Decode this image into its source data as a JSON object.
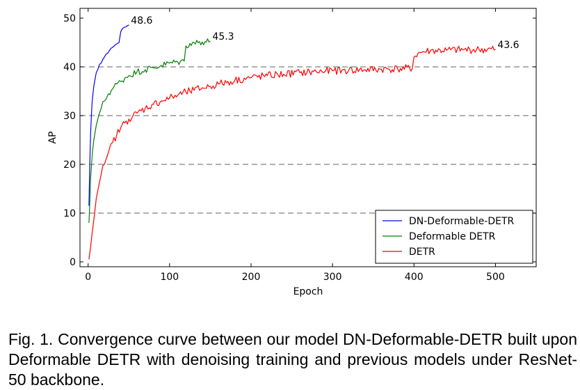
{
  "chart_data": {
    "type": "line",
    "title": "",
    "xlabel": "Epoch",
    "ylabel": "AP",
    "xlim": [
      -10,
      550
    ],
    "ylim": [
      -1,
      52
    ],
    "xticks": [
      0,
      100,
      200,
      300,
      400,
      500
    ],
    "yticks": [
      0,
      10,
      20,
      30,
      40,
      50
    ],
    "grid": "dashed horizontal at y=10, 20, 30, 40",
    "legend_position": "bottom-right",
    "series": [
      {
        "name": "DN-Deformable-DETR",
        "color": "#0000ff",
        "end_label": "48.6",
        "x": [
          1,
          2,
          3,
          4,
          5,
          6,
          7,
          8,
          10,
          12,
          14,
          16,
          18,
          20,
          22,
          24,
          26,
          28,
          30,
          32,
          34,
          36,
          38,
          40,
          42,
          44,
          46,
          48,
          50
        ],
        "y": [
          11.5,
          20.0,
          26.0,
          30.0,
          33.0,
          34.5,
          36.0,
          37.0,
          38.8,
          39.5,
          40.5,
          40.8,
          41.5,
          42.0,
          42.6,
          42.8,
          43.3,
          43.8,
          44.0,
          44.3,
          44.6,
          44.8,
          45.0,
          47.2,
          47.8,
          48.1,
          48.2,
          48.4,
          48.6
        ]
      },
      {
        "name": "Deformable DETR",
        "color": "#008000",
        "end_label": "45.3",
        "x": [
          1,
          2,
          3,
          5,
          7,
          10,
          13,
          16,
          20,
          25,
          30,
          35,
          40,
          45,
          50,
          60,
          70,
          80,
          90,
          100,
          110,
          118,
          120,
          125,
          130,
          140,
          150
        ],
        "y": [
          8.0,
          12.0,
          17.0,
          22.0,
          25.0,
          28.0,
          30.0,
          31.5,
          33.0,
          34.5,
          35.5,
          36.5,
          37.0,
          37.7,
          38.2,
          39.0,
          39.4,
          39.8,
          40.3,
          40.8,
          41.0,
          41.2,
          44.3,
          44.8,
          45.0,
          45.1,
          45.3
        ]
      },
      {
        "name": "DETR",
        "color": "#ff0000",
        "end_label": "43.6",
        "x": [
          1,
          3,
          5,
          8,
          10,
          13,
          16,
          20,
          25,
          30,
          35,
          40,
          45,
          50,
          60,
          70,
          80,
          90,
          100,
          110,
          120,
          130,
          140,
          150,
          160,
          180,
          200,
          220,
          240,
          260,
          280,
          300,
          320,
          340,
          360,
          380,
          398,
          400,
          405,
          410,
          420,
          440,
          460,
          480,
          500
        ],
        "y": [
          0.5,
          3.0,
          6.0,
          10.0,
          13.0,
          15.5,
          18.0,
          20.0,
          22.5,
          24.5,
          26.0,
          27.5,
          28.5,
          29.3,
          30.5,
          31.5,
          32.3,
          33.0,
          33.6,
          34.2,
          34.8,
          35.2,
          35.7,
          36.0,
          36.5,
          37.2,
          37.8,
          38.2,
          38.5,
          38.8,
          39.0,
          39.2,
          39.3,
          39.4,
          39.5,
          39.6,
          39.7,
          42.0,
          42.8,
          43.0,
          43.3,
          43.4,
          43.5,
          43.5,
          43.6
        ]
      }
    ]
  },
  "caption": "Fig. 1. Convergence curve between our model DN-Deformable-DETR built upon Deformable DETR with denoising training and previous models under ResNet-50 backbone."
}
